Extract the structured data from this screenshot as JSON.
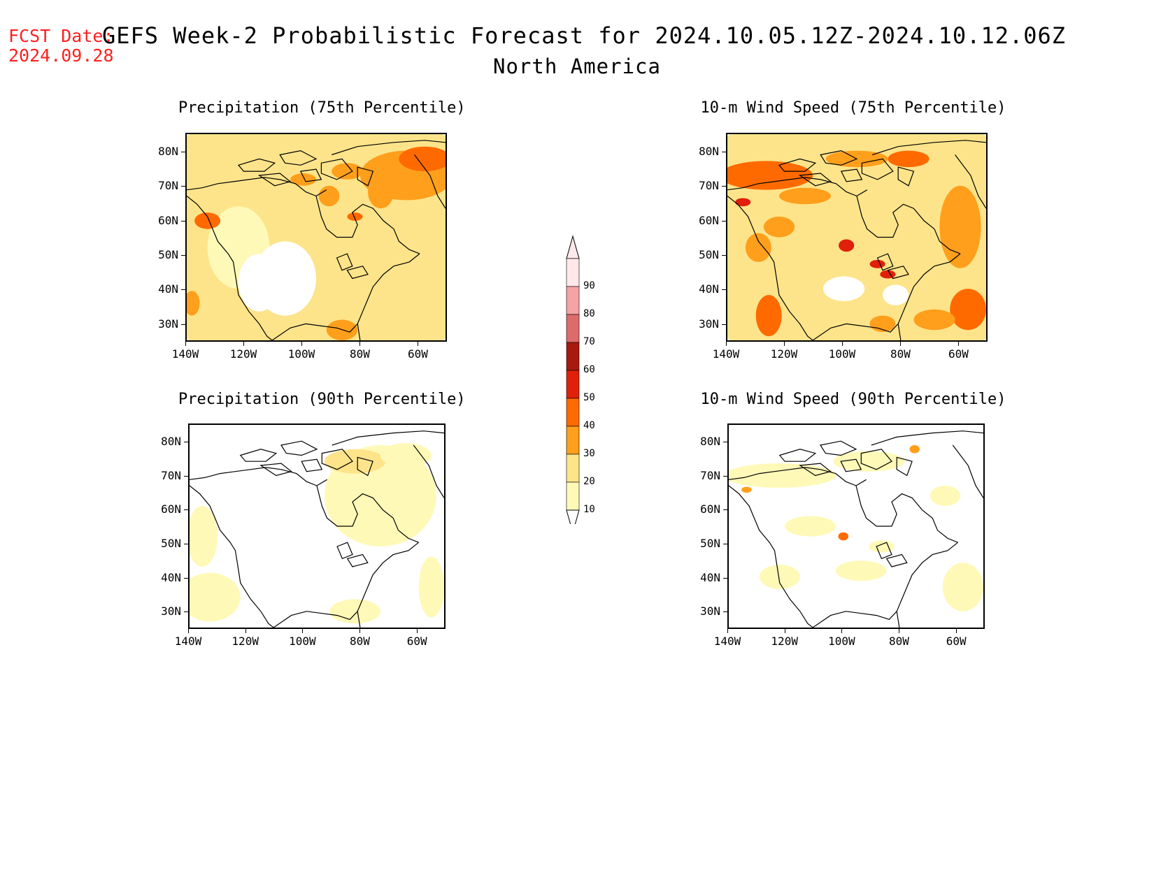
{
  "header": {
    "fcst_label": "FCST Date:",
    "fcst_date": "2024.09.28",
    "title": "GEFS Week-2 Probabilistic Forecast for 2024.10.05.12Z-2024.10.12.06Z",
    "region": "North America"
  },
  "axes": {
    "lat_labels": [
      "80N",
      "70N",
      "60N",
      "50N",
      "40N",
      "30N"
    ],
    "lon_labels": [
      "140W",
      "120W",
      "100W",
      "80W",
      "60W"
    ]
  },
  "panels": [
    {
      "id": "precip75",
      "title": "Precipitation (75th Percentile)",
      "intensity": "high",
      "base_color": "#fde48a"
    },
    {
      "id": "wind75",
      "title": "10-m Wind Speed (75th Percentile)",
      "intensity": "high",
      "base_color": "#fde48a"
    },
    {
      "id": "precip90",
      "title": "Precipitation (90th Percentile)",
      "intensity": "low",
      "base_color": "#fff9b8"
    },
    {
      "id": "wind90",
      "title": "10-m Wind Speed (90th Percentile)",
      "intensity": "low",
      "base_color": "#fff9b8"
    }
  ],
  "colorbar": {
    "labels": [
      "90",
      "80",
      "70",
      "60",
      "50",
      "40",
      "30",
      "20",
      "10"
    ],
    "colors": [
      "#ffe8ea",
      "#f5a3a6",
      "#de6b6b",
      "#a81a0f",
      "#e0200a",
      "#ff6a00",
      "#ff9f1c",
      "#fde48a",
      "#fff9b8"
    ]
  }
}
